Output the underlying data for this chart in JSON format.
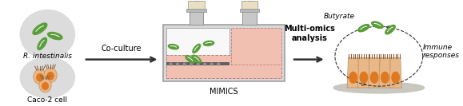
{
  "bg_color": "#ffffff",
  "fig_width": 5.79,
  "fig_height": 1.33,
  "dpi": 100,
  "bacteria_color": "#5a9e3a",
  "bacteria_bg": "#dcdcdc",
  "cell_color_orange": "#e07820",
  "cell_color_peach": "#e8b888",
  "cell_bg": "#dcdcdc",
  "mimics_box_outer": "#b0b0b0",
  "mimics_box_fill": "#d8d8d8",
  "mimics_pink": "#f2c0b0",
  "mimics_upper_fill": "#f0f0f0",
  "arrow_color": "#303030",
  "text_coculture": "Co-culture",
  "text_mimics": "MIMICS",
  "text_multiomics": "Multi-omics\nanalysis",
  "text_butyrate": "Butyrate",
  "text_immune": "Immune\nresponses",
  "text_r_intestinalis": "R. intestinalis",
  "text_caco2": "Caco-2 cell",
  "label_fontsize": 7.0,
  "small_fontsize": 6.5
}
